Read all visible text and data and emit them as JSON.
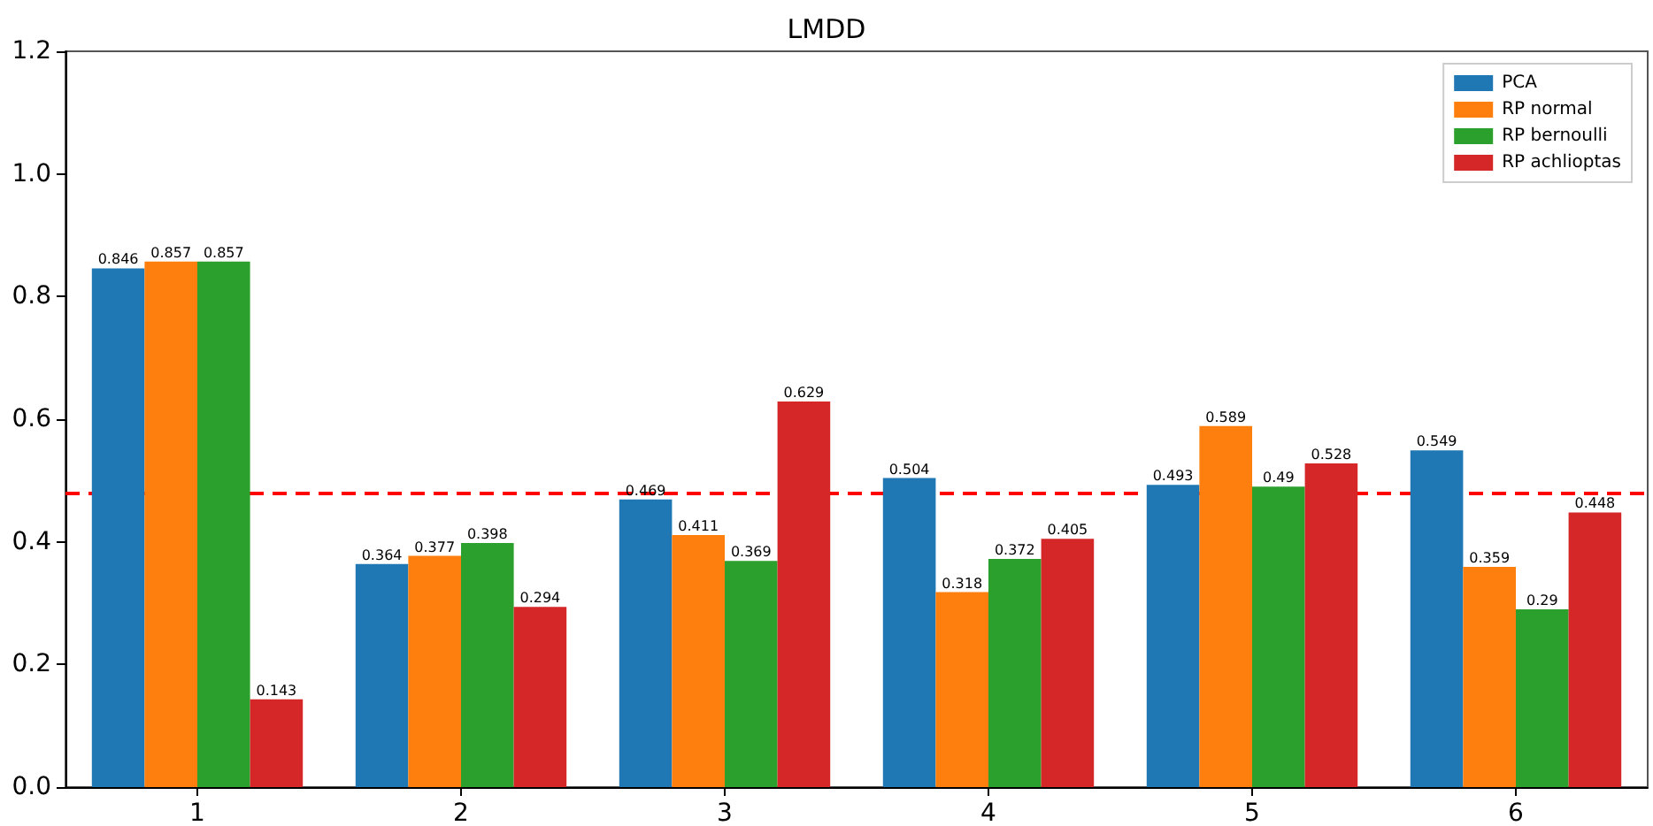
{
  "chart_data": {
    "type": "bar",
    "title": "LMDD",
    "categories": [
      "1",
      "2",
      "3",
      "4",
      "5",
      "6"
    ],
    "series": [
      {
        "name": "PCA",
        "color": "#1f77b4",
        "values": [
          0.846,
          0.364,
          0.469,
          0.504,
          0.493,
          0.549
        ]
      },
      {
        "name": "RP normal",
        "color": "#ff7f0e",
        "values": [
          0.857,
          0.377,
          0.411,
          0.318,
          0.589,
          0.359
        ]
      },
      {
        "name": "RP bernoulli",
        "color": "#2ca02c",
        "values": [
          0.857,
          0.398,
          0.369,
          0.372,
          0.49,
          0.29
        ]
      },
      {
        "name": "RP achlioptas",
        "color": "#d62728",
        "values": [
          0.143,
          0.294,
          0.629,
          0.405,
          0.528,
          0.448
        ]
      }
    ],
    "ylim": [
      0,
      1.2
    ],
    "yticks": [
      {
        "value": 0,
        "label": "0.0"
      },
      0.2,
      0.4,
      0.6,
      0.8,
      {
        "value": 1,
        "label": "1.0"
      },
      1.2
    ],
    "ref_lines": [
      {
        "axis": "y",
        "value": 0.483,
        "color": "#ff0000",
        "line_style": "dashed"
      }
    ],
    "data_labels": true,
    "grid": false,
    "legend": "top right"
  }
}
